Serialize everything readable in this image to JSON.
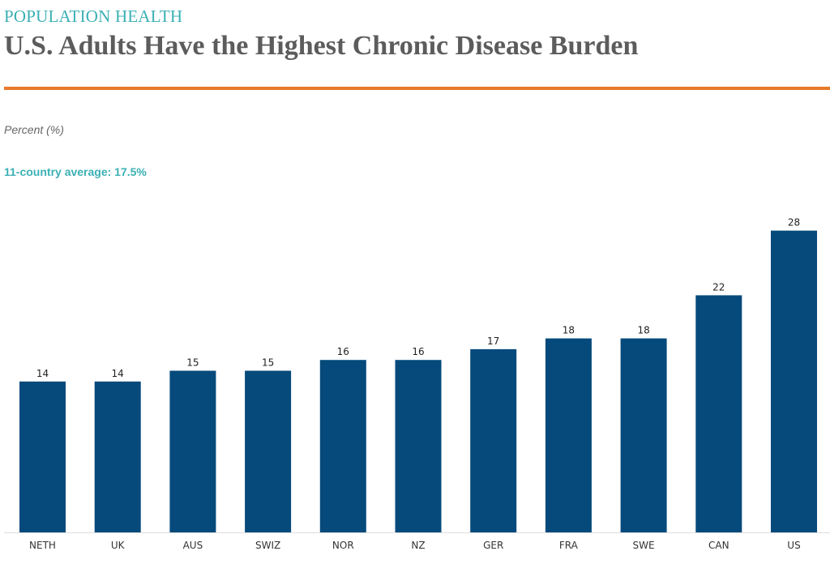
{
  "header": {
    "eyebrow": "POPULATION HEALTH",
    "title": "U.S. Adults Have the Highest Chronic Disease Burden"
  },
  "colors": {
    "bar": "#054a7b",
    "eyebrow": "#3bb0b4",
    "rule": "#e8792b",
    "title": "#5c5c5c"
  },
  "chart_data": {
    "type": "bar",
    "title": "U.S. Adults Have the Highest Chronic Disease Burden",
    "ylabel": "Percent (%)",
    "xlabel": "",
    "annotation": "11-country average: 17.5%",
    "categories": [
      "NETH",
      "UK",
      "AUS",
      "SWIZ",
      "NOR",
      "NZ",
      "GER",
      "FRA",
      "SWE",
      "CAN",
      "US"
    ],
    "values": [
      14,
      14,
      15,
      15,
      16,
      16,
      17,
      18,
      18,
      22,
      28
    ],
    "ylim": [
      0,
      30
    ],
    "grid": false,
    "legend": "none"
  }
}
